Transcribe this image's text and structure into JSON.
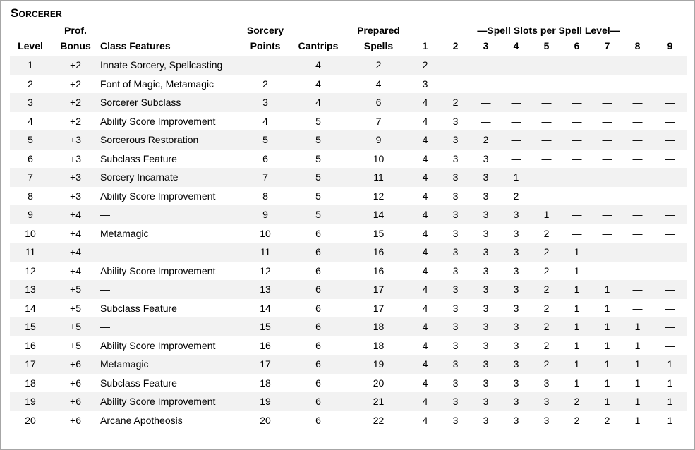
{
  "table": {
    "name": "Sorcerer",
    "header": {
      "level": "Level",
      "prof_bonus": [
        "Prof.",
        "Bonus"
      ],
      "class_features": "Class Features",
      "sorcery_points": [
        "Sorcery",
        "Points"
      ],
      "cantrips": "Cantrips",
      "prepared_spells": [
        "Prepared",
        "Spells"
      ],
      "slots_group": "—Spell Slots per Spell Level—",
      "slot_levels": [
        "1",
        "2",
        "3",
        "4",
        "5",
        "6",
        "7",
        "8",
        "9"
      ]
    },
    "rows": [
      {
        "level": "1",
        "prof_bonus": "+2",
        "class_features": "Innate Sorcery, Spellcasting",
        "sorcery_points": "—",
        "cantrips": "4",
        "prepared_spells": "2",
        "slots": [
          "2",
          "—",
          "—",
          "—",
          "—",
          "—",
          "—",
          "—",
          "—"
        ]
      },
      {
        "level": "2",
        "prof_bonus": "+2",
        "class_features": "Font of Magic, Metamagic",
        "sorcery_points": "2",
        "cantrips": "4",
        "prepared_spells": "4",
        "slots": [
          "3",
          "—",
          "—",
          "—",
          "—",
          "—",
          "—",
          "—",
          "—"
        ]
      },
      {
        "level": "3",
        "prof_bonus": "+2",
        "class_features": "Sorcerer Subclass",
        "sorcery_points": "3",
        "cantrips": "4",
        "prepared_spells": "6",
        "slots": [
          "4",
          "2",
          "—",
          "—",
          "—",
          "—",
          "—",
          "—",
          "—"
        ]
      },
      {
        "level": "4",
        "prof_bonus": "+2",
        "class_features": "Ability Score Improvement",
        "sorcery_points": "4",
        "cantrips": "5",
        "prepared_spells": "7",
        "slots": [
          "4",
          "3",
          "—",
          "—",
          "—",
          "—",
          "—",
          "—",
          "—"
        ]
      },
      {
        "level": "5",
        "prof_bonus": "+3",
        "class_features": "Sorcerous Restoration",
        "sorcery_points": "5",
        "cantrips": "5",
        "prepared_spells": "9",
        "slots": [
          "4",
          "3",
          "2",
          "—",
          "—",
          "—",
          "—",
          "—",
          "—"
        ]
      },
      {
        "level": "6",
        "prof_bonus": "+3",
        "class_features": "Subclass Feature",
        "sorcery_points": "6",
        "cantrips": "5",
        "prepared_spells": "10",
        "slots": [
          "4",
          "3",
          "3",
          "—",
          "—",
          "—",
          "—",
          "—",
          "—"
        ]
      },
      {
        "level": "7",
        "prof_bonus": "+3",
        "class_features": "Sorcery Incarnate",
        "sorcery_points": "7",
        "cantrips": "5",
        "prepared_spells": "11",
        "slots": [
          "4",
          "3",
          "3",
          "1",
          "—",
          "—",
          "—",
          "—",
          "—"
        ]
      },
      {
        "level": "8",
        "prof_bonus": "+3",
        "class_features": "Ability Score Improvement",
        "sorcery_points": "8",
        "cantrips": "5",
        "prepared_spells": "12",
        "slots": [
          "4",
          "3",
          "3",
          "2",
          "—",
          "—",
          "—",
          "—",
          "—"
        ]
      },
      {
        "level": "9",
        "prof_bonus": "+4",
        "class_features": "—",
        "sorcery_points": "9",
        "cantrips": "5",
        "prepared_spells": "14",
        "slots": [
          "4",
          "3",
          "3",
          "3",
          "1",
          "—",
          "—",
          "—",
          "—"
        ]
      },
      {
        "level": "10",
        "prof_bonus": "+4",
        "class_features": "Metamagic",
        "sorcery_points": "10",
        "cantrips": "6",
        "prepared_spells": "15",
        "slots": [
          "4",
          "3",
          "3",
          "3",
          "2",
          "—",
          "—",
          "—",
          "—"
        ]
      },
      {
        "level": "11",
        "prof_bonus": "+4",
        "class_features": "—",
        "sorcery_points": "11",
        "cantrips": "6",
        "prepared_spells": "16",
        "slots": [
          "4",
          "3",
          "3",
          "3",
          "2",
          "1",
          "—",
          "—",
          "—"
        ]
      },
      {
        "level": "12",
        "prof_bonus": "+4",
        "class_features": "Ability Score Improvement",
        "sorcery_points": "12",
        "cantrips": "6",
        "prepared_spells": "16",
        "slots": [
          "4",
          "3",
          "3",
          "3",
          "2",
          "1",
          "—",
          "—",
          "—"
        ]
      },
      {
        "level": "13",
        "prof_bonus": "+5",
        "class_features": "—",
        "sorcery_points": "13",
        "cantrips": "6",
        "prepared_spells": "17",
        "slots": [
          "4",
          "3",
          "3",
          "3",
          "2",
          "1",
          "1",
          "—",
          "—"
        ]
      },
      {
        "level": "14",
        "prof_bonus": "+5",
        "class_features": "Subclass Feature",
        "sorcery_points": "14",
        "cantrips": "6",
        "prepared_spells": "17",
        "slots": [
          "4",
          "3",
          "3",
          "3",
          "2",
          "1",
          "1",
          "—",
          "—"
        ]
      },
      {
        "level": "15",
        "prof_bonus": "+5",
        "class_features": "—",
        "sorcery_points": "15",
        "cantrips": "6",
        "prepared_spells": "18",
        "slots": [
          "4",
          "3",
          "3",
          "3",
          "2",
          "1",
          "1",
          "1",
          "—"
        ]
      },
      {
        "level": "16",
        "prof_bonus": "+5",
        "class_features": "Ability Score Improvement",
        "sorcery_points": "16",
        "cantrips": "6",
        "prepared_spells": "18",
        "slots": [
          "4",
          "3",
          "3",
          "3",
          "2",
          "1",
          "1",
          "1",
          "—"
        ]
      },
      {
        "level": "17",
        "prof_bonus": "+6",
        "class_features": "Metamagic",
        "sorcery_points": "17",
        "cantrips": "6",
        "prepared_spells": "19",
        "slots": [
          "4",
          "3",
          "3",
          "3",
          "2",
          "1",
          "1",
          "1",
          "1"
        ]
      },
      {
        "level": "18",
        "prof_bonus": "+6",
        "class_features": "Subclass Feature",
        "sorcery_points": "18",
        "cantrips": "6",
        "prepared_spells": "20",
        "slots": [
          "4",
          "3",
          "3",
          "3",
          "3",
          "1",
          "1",
          "1",
          "1"
        ]
      },
      {
        "level": "19",
        "prof_bonus": "+6",
        "class_features": "Ability Score Improvement",
        "sorcery_points": "19",
        "cantrips": "6",
        "prepared_spells": "21",
        "slots": [
          "4",
          "3",
          "3",
          "3",
          "3",
          "2",
          "1",
          "1",
          "1"
        ]
      },
      {
        "level": "20",
        "prof_bonus": "+6",
        "class_features": "Arcane Apotheosis",
        "sorcery_points": "20",
        "cantrips": "6",
        "prepared_spells": "22",
        "slots": [
          "4",
          "3",
          "3",
          "3",
          "3",
          "2",
          "2",
          "1",
          "1"
        ]
      }
    ]
  },
  "colors": {
    "stripe": "#f2f2f2",
    "border": "#a6a6a6",
    "text": "#000000",
    "background": "#ffffff"
  }
}
